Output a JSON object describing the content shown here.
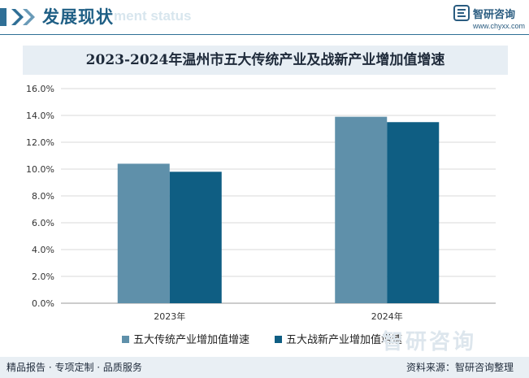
{
  "header": {
    "title": "发展现状",
    "subtitle_watermark": "ment status",
    "brand_name": "智研咨询",
    "brand_url": "www.chyxx.com"
  },
  "footer": {
    "tagline": "精品报告 · 专项定制 · 品质服务",
    "source": "资料来源：智研咨询整理",
    "watermark": "智研咨询"
  },
  "colors": {
    "series1": "#5f90aa",
    "series2": "#0f5e83",
    "accent": "#2f6f96"
  },
  "chart_data": {
    "type": "bar",
    "title": "2023-2024年温州市五大传统产业及战新产业增加值增速",
    "categories": [
      "2023年",
      "2024年"
    ],
    "series": [
      {
        "name": "五大传统产业增加值增速",
        "values": [
          10.4,
          13.9
        ]
      },
      {
        "name": "五大战新产业增加值增速",
        "values": [
          9.8,
          13.5
        ]
      }
    ],
    "y_ticks": [
      "0.0%",
      "2.0%",
      "4.0%",
      "6.0%",
      "8.0%",
      "10.0%",
      "12.0%",
      "14.0%",
      "16.0%"
    ],
    "ylim": [
      0,
      16
    ],
    "unit": "%",
    "grid": true,
    "legend_position": "bottom"
  }
}
